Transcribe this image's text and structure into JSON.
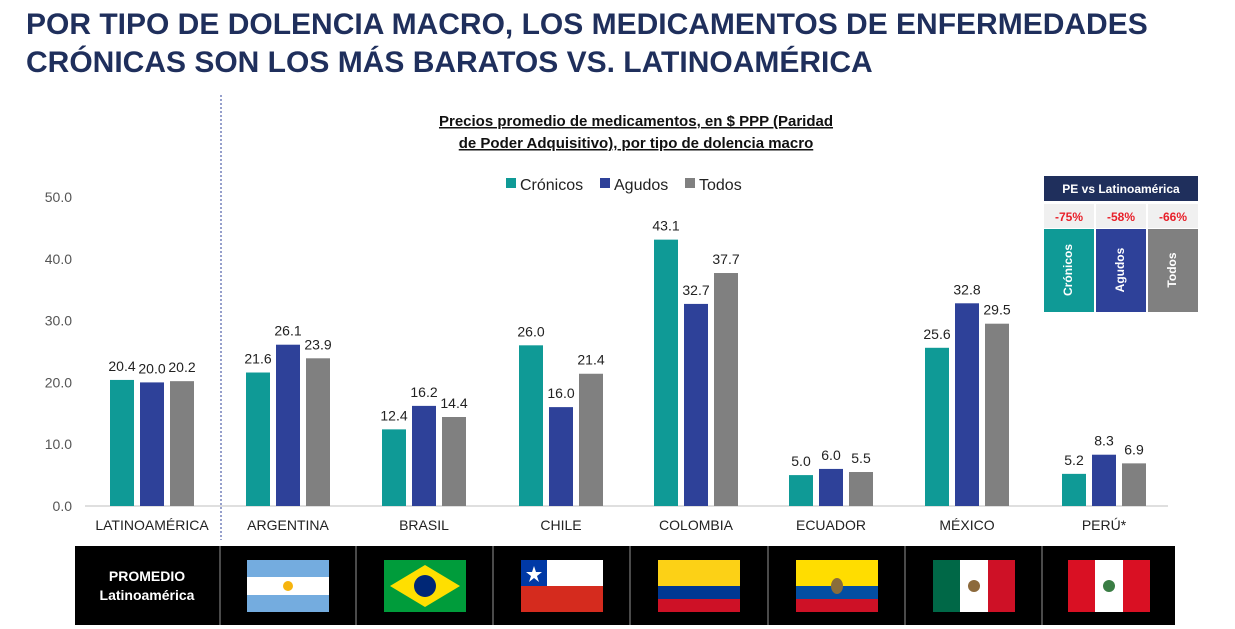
{
  "page": {
    "title_line1": "POR TIPO DE DOLENCIA MACRO, LOS MEDICAMENTOS DE ENFERMEDADES",
    "title_line2": "CRÓNICAS SON LOS MÁS BARATOS VS. LATINOAMÉRICA"
  },
  "chart_data": {
    "type": "bar",
    "title_line1": "Precios promedio de medicamentos, en $ PPP (Paridad",
    "title_line2": "de Poder Adquisitivo), por tipo de dolencia macro",
    "categories": [
      "LATINOAMÉRICA",
      "ARGENTINA",
      "BRASIL",
      "CHILE",
      "COLOMBIA",
      "ECUADOR",
      "MÉXICO",
      "PERÚ*"
    ],
    "series": [
      {
        "name": "Crónicos",
        "color": "#0f9a96",
        "values": [
          20.4,
          21.6,
          12.4,
          26.0,
          43.1,
          5.0,
          25.6,
          5.2
        ]
      },
      {
        "name": "Agudos",
        "color": "#2e4199",
        "values": [
          20.0,
          26.1,
          16.2,
          16.0,
          32.7,
          6.0,
          32.8,
          8.3
        ]
      },
      {
        "name": "Todos",
        "color": "#808080",
        "values": [
          20.2,
          23.9,
          14.4,
          21.4,
          37.7,
          5.5,
          29.5,
          6.9
        ]
      }
    ],
    "yticks": [
      "0.0",
      "10.0",
      "20.0",
      "30.0",
      "40.0",
      "50.0"
    ],
    "ylim": [
      0,
      50
    ],
    "grid": false,
    "legend_position": "top-center"
  },
  "comparison_box": {
    "header": "PE vs Latinoamérica",
    "items": [
      {
        "pct": "-75%",
        "label": "Crónicos",
        "color": "#0f9a96"
      },
      {
        "pct": "-58%",
        "label": "Agudos",
        "color": "#2e4199"
      },
      {
        "pct": "-66%",
        "label": "Todos",
        "color": "#808080"
      }
    ]
  },
  "flag_bar": {
    "promedio_line1": "PROMEDIO",
    "promedio_line2": "Latinoamérica",
    "flags": [
      "argentina-flag-icon",
      "brazil-flag-icon",
      "chile-flag-icon",
      "colombia-flag-icon",
      "ecuador-flag-icon",
      "mexico-flag-icon",
      "peru-flag-icon"
    ]
  }
}
